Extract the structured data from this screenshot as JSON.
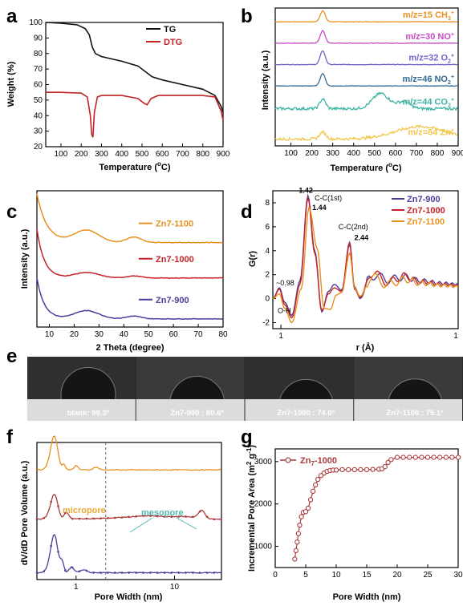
{
  "panels": {
    "a": "a",
    "b": "b",
    "c": "c",
    "d": "d",
    "e": "e",
    "f": "f",
    "g": "g"
  },
  "chart_data": [
    {
      "id": "a",
      "type": "line",
      "xlabel": "Temperature (°C)",
      "ylabel": "Weight (%)",
      "xlim": [
        25,
        900
      ],
      "ylim": [
        20,
        100
      ],
      "xticks": [
        "100",
        "200",
        "300",
        "400",
        "500",
        "600",
        "700",
        "800",
        "900"
      ],
      "yticks": [
        "20",
        "30",
        "40",
        "50",
        "60",
        "70",
        "80",
        "90",
        "100"
      ],
      "series": [
        {
          "name": "TG",
          "color": "#111111",
          "x": [
            25,
            100,
            180,
            220,
            240,
            255,
            270,
            300,
            400,
            480,
            520,
            550,
            600,
            700,
            800,
            860,
            890,
            900
          ],
          "y": [
            100,
            99.5,
            98.5,
            96,
            92,
            84,
            80,
            78,
            75,
            72,
            68,
            65,
            63,
            60,
            57,
            53,
            46,
            42
          ]
        },
        {
          "name": "DTG",
          "color": "#c42226",
          "x": [
            25,
            100,
            200,
            230,
            245,
            252,
            258,
            265,
            280,
            300,
            400,
            480,
            510,
            525,
            545,
            580,
            700,
            800,
            860,
            890,
            900
          ],
          "y": [
            55,
            55,
            54.5,
            52,
            40,
            28,
            26,
            42,
            52,
            53,
            53,
            51,
            48,
            47,
            51,
            53,
            53,
            53,
            52,
            43,
            37
          ]
        }
      ]
    },
    {
      "id": "b",
      "type": "line",
      "xlabel": "Temperature (°C)",
      "ylabel": "Intensity (a.u.)",
      "xlim": [
        25,
        900
      ],
      "xticks": [
        "100",
        "200",
        "300",
        "400",
        "500",
        "600",
        "700",
        "800",
        "900"
      ],
      "series": [
        {
          "name": "m/z=15 CH3+",
          "color": "#e8901f",
          "base": 0.9,
          "peaks": [
            [
              252,
              0.08,
              12
            ]
          ]
        },
        {
          "name": "m/z=30 NO+",
          "color": "#c848c4",
          "base": 0.745,
          "peaks": [
            [
              252,
              0.09,
              12
            ]
          ]
        },
        {
          "name": "m/z=32 O2+",
          "color": "#7a5fc8",
          "base": 0.59,
          "peaks": [
            [
              252,
              0.1,
              12
            ]
          ]
        },
        {
          "name": "m/z=46 NO2+",
          "color": "#2f6a96",
          "base": 0.435,
          "peaks": [
            [
              252,
              0.09,
              12
            ]
          ]
        },
        {
          "name": "m/z=44 CO2+",
          "color": "#3eb5a4",
          "base": 0.27,
          "peaks": [
            [
              252,
              0.07,
              14
            ],
            [
              530,
              0.11,
              40
            ],
            [
              640,
              0.05,
              30
            ]
          ]
        },
        {
          "name": "m/z=64 Zn+",
          "color": "#f2c64a",
          "base": 0.05,
          "peaks": [
            [
              252,
              0.05,
              15
            ],
            [
              720,
              0.09,
              120
            ]
          ]
        }
      ],
      "legend": [
        "m/z=15 CH",
        "m/z=30 NO",
        "m/z=32 O",
        "m/z=46 NO",
        "m/z=44 CO",
        "m/z=64 Zn"
      ],
      "legend_sub": [
        "3",
        "",
        "2",
        "2",
        "2",
        ""
      ]
    },
    {
      "id": "c",
      "type": "line",
      "xlabel": "2 Theta (degree)",
      "ylabel": "Intensity (a.u.)",
      "xlim": [
        5,
        80
      ],
      "xticks": [
        "10",
        "20",
        "30",
        "40",
        "50",
        "60",
        "70",
        "80"
      ],
      "series": [
        {
          "name": "Zn7-1100",
          "color": "#e8901f",
          "base": 0.62,
          "start": 0.98,
          "decay": 4,
          "peaks": [
            [
              25,
              0.09,
              5
            ],
            [
              44,
              0.04,
              3
            ]
          ]
        },
        {
          "name": "Zn7-1000",
          "color": "#c42226",
          "base": 0.36,
          "start": 0.72,
          "decay": 3,
          "peaks": [
            [
              25,
              0.04,
              5
            ],
            [
              44,
              0.015,
              3
            ]
          ]
        },
        {
          "name": "Zn7-900",
          "color": "#4b3e9a",
          "base": 0.06,
          "start": 0.36,
          "decay": 3,
          "peaks": [
            [
              25,
              0.06,
              5
            ],
            [
              44,
              0.02,
              3
            ]
          ]
        }
      ],
      "legend": [
        "Zn",
        "Zn",
        "Zn"
      ],
      "legend_suffix": [
        "7-1100",
        "7-1000",
        "7-900"
      ]
    },
    {
      "id": "d",
      "type": "line",
      "xlabel": "r (Å)",
      "ylabel": "G(r)",
      "xlim": [
        0.9,
        10
      ],
      "ylim": [
        -2.5,
        9
      ],
      "xticks": [
        "1",
        "1"
      ],
      "yticks": [
        "-2",
        "0",
        "2",
        "4",
        "6",
        "8"
      ],
      "annotations": [
        "1.42",
        "1.44",
        "C-C(1st)",
        "C-C(2nd)",
        "2.44",
        "~0.98",
        "O-H"
      ],
      "series": [
        {
          "name": "Zn7-900",
          "color": "#4b3e9a",
          "x": [
            0.9,
            0.98,
            1.05,
            1.15,
            1.28,
            1.42,
            1.55,
            1.7,
            1.85,
            2.0,
            2.2,
            2.44,
            2.6,
            2.8,
            3.2,
            4,
            5,
            6,
            8,
            10
          ],
          "y": [
            0,
            0.9,
            -0.3,
            -1.4,
            1.5,
            8.6,
            4,
            -1.1,
            0.6,
            1.2,
            0.7,
            4.5,
            1.0,
            0.0,
            2.0,
            1.6,
            1.8,
            1.5,
            1.3,
            1.2
          ]
        },
        {
          "name": "Zn7-1000",
          "color": "#c42226",
          "x": [
            0.9,
            0.98,
            1.05,
            1.15,
            1.28,
            1.42,
            1.55,
            1.7,
            1.85,
            2.0,
            2.2,
            2.44,
            2.6,
            2.8,
            3.2,
            4,
            5,
            6,
            8,
            10
          ],
          "y": [
            0,
            0.8,
            -0.5,
            -1.6,
            1.2,
            8.4,
            3.8,
            -1.0,
            0.4,
            0.9,
            0.6,
            4.7,
            0.8,
            0.1,
            2.2,
            1.4,
            1.9,
            1.4,
            1.2,
            1.1
          ]
        },
        {
          "name": "Zn7-1100",
          "color": "#e8901f",
          "x": [
            0.9,
            0.98,
            1.05,
            1.15,
            1.3,
            1.44,
            1.6,
            1.75,
            1.9,
            2.05,
            2.2,
            2.44,
            2.6,
            2.8,
            3.2,
            4,
            5,
            6,
            8,
            10
          ],
          "y": [
            0,
            0.4,
            -0.8,
            -2.0,
            0.8,
            7.6,
            4.2,
            -0.8,
            -0.9,
            0.3,
            0.5,
            3.8,
            0.9,
            0.2,
            1.8,
            1.2,
            1.6,
            1.3,
            1.1,
            1.0
          ]
        }
      ],
      "legend": [
        "Zn",
        "Zn",
        "Zn"
      ],
      "legend_suffix": [
        "7-900",
        "7-1000",
        "7-1100"
      ]
    },
    {
      "id": "e",
      "type": "table",
      "labels": [
        "blank: 99.3°",
        "Zn7-900 : 80.6°",
        "Zn7-1000 : 74.0°",
        "Zn7-1100 : 75.1°"
      ],
      "contact_angles_deg": [
        99.3,
        80.6,
        74.0,
        75.1
      ]
    },
    {
      "id": "f",
      "type": "line",
      "xlabel": "Pore Width (nm)",
      "ylabel": "dV/dD Pore Volume (a.u.)",
      "xlim": [
        0.4,
        30
      ],
      "xscale": "log",
      "xticks": [
        "1",
        "10"
      ],
      "divider_x": 2,
      "annotations": [
        "micropore",
        "mesopore"
      ],
      "series": [
        {
          "name": "orange",
          "color": "#e8901f",
          "base": 0.8,
          "peaks": [
            [
              0.6,
              0.25,
              0.05
            ],
            [
              0.75,
              0.04,
              0.03
            ],
            [
              1.0,
              0.03,
              0.05
            ],
            [
              1.6,
              0.02,
              0.1
            ]
          ]
        },
        {
          "name": "red",
          "color": "#a93a3a",
          "base": 0.44,
          "peaks": [
            [
              0.6,
              0.18,
              0.05
            ],
            [
              0.8,
              0.05,
              0.04
            ],
            [
              5,
              0.02,
              2
            ],
            [
              12,
              0.02,
              4
            ],
            [
              19,
              0.06,
              1.5
            ]
          ]
        },
        {
          "name": "purple",
          "color": "#4b3e9a",
          "base": 0.05,
          "peaks": [
            [
              0.6,
              0.28,
              0.05
            ],
            [
              0.72,
              0.08,
              0.03
            ],
            [
              0.9,
              0.04,
              0.05
            ],
            [
              1.2,
              0.02,
              0.1
            ]
          ]
        }
      ]
    },
    {
      "id": "g",
      "type": "scatter",
      "xlabel": "Pore Width (nm)",
      "ylabel": "Incremental Pore Area (m² g⁻¹)",
      "xlim": [
        0,
        30
      ],
      "ylim": [
        500,
        3300
      ],
      "xticks": [
        "0",
        "5",
        "10",
        "15",
        "20",
        "25",
        "30"
      ],
      "yticks": [
        "1000",
        "2000",
        "3000"
      ],
      "series": [
        {
          "name": "Zn7-1000",
          "color": "#a93a3a",
          "x": [
            3.2,
            3.4,
            3.6,
            3.8,
            4.0,
            4.3,
            4.6,
            5.0,
            5.4,
            5.8,
            6.2,
            6.6,
            7.0,
            7.5,
            8.0,
            8.5,
            9.0,
            9.5,
            10,
            11,
            12,
            13,
            14,
            15,
            16,
            17,
            17.5,
            18,
            18.5,
            19,
            20,
            21,
            22,
            23,
            24,
            25,
            26,
            27,
            28,
            29,
            30
          ],
          "y": [
            700,
            900,
            1100,
            1300,
            1500,
            1700,
            1800,
            1820,
            1900,
            2100,
            2300,
            2450,
            2580,
            2670,
            2730,
            2770,
            2790,
            2800,
            2800,
            2810,
            2810,
            2810,
            2810,
            2810,
            2815,
            2820,
            2830,
            2880,
            2980,
            3050,
            3100,
            3100,
            3100,
            3100,
            3100,
            3100,
            3100,
            3100,
            3100,
            3100,
            3100
          ]
        }
      ]
    }
  ],
  "labels_text": {
    "a_tg": "TG",
    "a_dtg": "DTG",
    "a_ylabel": "Weight (%)",
    "a_xlabel": "Temperature (",
    "a_xlabel_deg": "o",
    "a_xlabel_tail": "C)",
    "b_ylabel": "Intensity (a.u.)",
    "b_xlabel": "Temperature (",
    "b_xlabel_deg": "o",
    "b_xlabel_tail": "C)",
    "c_ylabel": "Intensity (a.u.)",
    "c_xlabel": "2 Theta (degree)",
    "d_ylabel": "G(r)",
    "d_xlabel": "r (Å)",
    "f_ylabel": "dV/dD Pore Volume (a.u.)",
    "f_xlabel": "Pore Width (nm)",
    "g_ylabel": "Incremental Pore Area (m",
    "g_ylabel_sup1": "2",
    "g_ylabel_mid": " g",
    "g_ylabel_sup2": "-1",
    "g_ylabel_tail": ")",
    "g_xlabel": "Pore Width (nm)",
    "g_legend": "Zn",
    "g_legend_sub": "7",
    "g_legend_tail": "-1000",
    "b_plus": "+",
    "f_micropore": "micropore",
    "f_mesopore": "mesopore"
  }
}
